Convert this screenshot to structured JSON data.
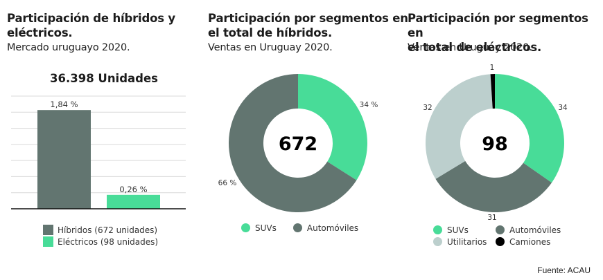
{
  "colors": {
    "dark_gray": "#627570",
    "green": "#48dc98",
    "light_gray": "#bccfcd",
    "black": "#000000",
    "grid": "#d9d9d9"
  },
  "chart_data": [
    {
      "type": "bar",
      "title": "Participación de híbridos y eléctricos.",
      "subtitle": "Mercado uruguayo 2020.",
      "total_label": "36.398 Unidades",
      "categories": [
        "Híbridos (672 unidades)",
        "Eléctricos (98 unidades)"
      ],
      "values": [
        1.84,
        0.26
      ],
      "data_labels": [
        "1,84 %",
        "0,26 %"
      ],
      "ylim": [
        0,
        2.1
      ],
      "grid": true,
      "legend": [
        {
          "label": "Híbridos (672 unidades)",
          "color": "#627570"
        },
        {
          "label": "Eléctricos (98 unidades)",
          "color": "#48dc98"
        }
      ],
      "legend_position": "bottom"
    },
    {
      "type": "pie",
      "title": "Participación por segmentos en el total de híbridos.",
      "subtitle": "Ventas en Uruguay 2020.",
      "center_label": "672",
      "slices": [
        {
          "label": "SUVs",
          "value": 34,
          "data_label": "34 %",
          "color": "#48dc98"
        },
        {
          "label": "Automóviles",
          "value": 66,
          "data_label": "66 %",
          "color": "#627570"
        }
      ],
      "legend_position": "bottom"
    },
    {
      "type": "pie",
      "title": "Participación por segmentos en el total de eléctricos.",
      "subtitle": "Ventas en Uruguay 2020.",
      "center_label": "98",
      "slices": [
        {
          "label": "SUVs",
          "value": 34,
          "data_label": "34",
          "color": "#48dc98"
        },
        {
          "label": "Automóviles",
          "value": 31,
          "data_label": "31",
          "color": "#627570"
        },
        {
          "label": "Utilitarios",
          "value": 32,
          "data_label": "32",
          "color": "#bccfcd"
        },
        {
          "label": "Camiones",
          "value": 1,
          "data_label": "1",
          "color": "#000000"
        }
      ],
      "legend_position": "bottom"
    }
  ],
  "panels": {
    "bar": {
      "title_line1": "Participación de híbridos y",
      "title_line2": "eléctricos.",
      "subtitle": "Mercado uruguayo 2020.",
      "total": "36.398 Unidades",
      "legend": [
        "Híbridos (672 unidades)",
        "Eléctricos (98 unidades)"
      ]
    },
    "hybrids": {
      "title_line1": "Participación por segmentos en",
      "title_line2": "el total de híbridos.",
      "subtitle": "Ventas en Uruguay 2020.",
      "legend": [
        "SUVs",
        "Automóviles"
      ]
    },
    "electrics": {
      "title_line1": "Participación por segmentos en",
      "title_line2": "el total de eléctricos.",
      "subtitle": "Ventas en Uruguay 2020.",
      "legend": [
        "SUVs",
        "Automóviles",
        "Utilitarios",
        "Camiones"
      ]
    }
  },
  "source": "Fuente: ACAU"
}
